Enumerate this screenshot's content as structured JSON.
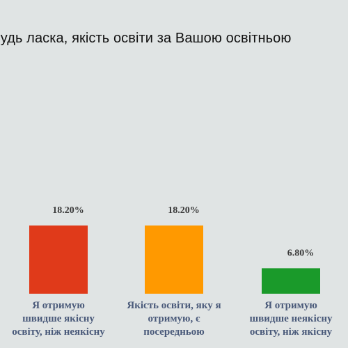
{
  "chart_data": {
    "type": "bar",
    "title": "Будь ласка, якість освіти за Вашою освітньою",
    "categories": [
      [
        "Я отримую",
        "швидше якісну",
        "освіту, ніж неякісну"
      ],
      [
        "Якість освіти, яку я",
        "отримую, є",
        "посередньою"
      ],
      [
        "Я отримую",
        "швидше неякісну",
        "освіту, ніж якісну"
      ]
    ],
    "values": [
      18.2,
      18.2,
      6.8
    ],
    "value_labels": [
      "18.20%",
      "18.20%",
      "6.80%"
    ],
    "colors": [
      "#e03a1a",
      "#ff9900",
      "#1a9a2a"
    ],
    "xlabel": "",
    "ylabel": "",
    "grid": false,
    "legend": "none"
  }
}
